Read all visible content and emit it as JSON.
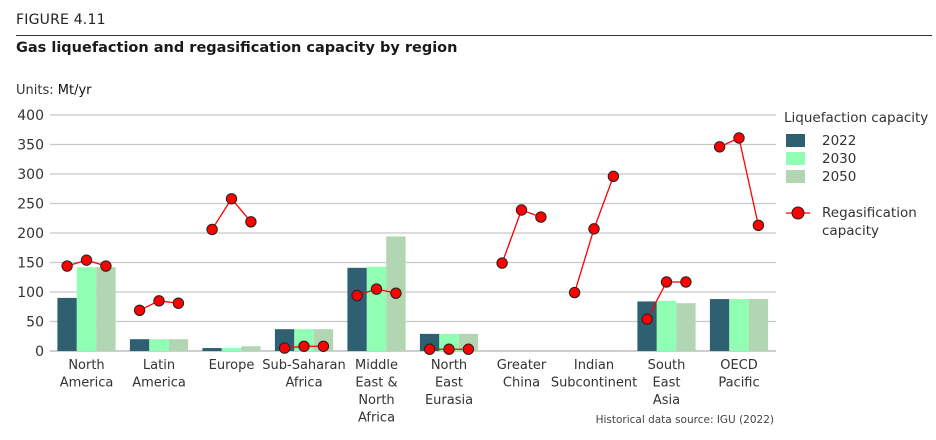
{
  "figure_label": "FIGURE 4.11",
  "units_prefix": "Units:",
  "units_value": "Mt/yr",
  "source_note": "Historical data source: IGU (2022)",
  "colors": {
    "y2022": "#2e6072",
    "y2030": "#90ffb3",
    "y2050": "#b1d6b1",
    "regas": "#ff0000",
    "grid": "#c8c8c8"
  },
  "legend": {
    "title": "Liquefaction capacity",
    "items": [
      {
        "label": "2022",
        "color_key": "y2022"
      },
      {
        "label": "2030",
        "color_key": "y2030"
      },
      {
        "label": "2050",
        "color_key": "y2050"
      }
    ],
    "regas_label_line1": "Regasification",
    "regas_label_line2": "capacity"
  },
  "chart_data": {
    "type": "bar",
    "title": "Gas liquefaction and regasification capacity by region",
    "xlabel": "",
    "ylabel": "Mt/yr",
    "ylim": [
      0,
      400
    ],
    "yticks": [
      0,
      50,
      100,
      150,
      200,
      250,
      300,
      350,
      400
    ],
    "grid": true,
    "legend_position": "right",
    "categories": [
      [
        "North",
        "America"
      ],
      [
        "Latin",
        "America"
      ],
      [
        "Europe"
      ],
      [
        "Sub-Saharan",
        "Africa"
      ],
      [
        "Middle",
        "East &",
        "North",
        "Africa"
      ],
      [
        "North",
        "East",
        "Eurasia"
      ],
      [
        "Greater",
        "China"
      ],
      [
        "Indian",
        "Subcontinent"
      ],
      [
        "South",
        "East",
        "Asia"
      ],
      [
        "OECD",
        "Pacific"
      ]
    ],
    "series": [
      {
        "name": "2022",
        "kind": "bar",
        "color_key": "y2022",
        "values": [
          90,
          20,
          5,
          37,
          141,
          29,
          0,
          0,
          84,
          88
        ]
      },
      {
        "name": "2030",
        "kind": "bar",
        "color_key": "y2030",
        "values": [
          142,
          20,
          5,
          37,
          143,
          29,
          0,
          0,
          85,
          88
        ]
      },
      {
        "name": "2050",
        "kind": "bar",
        "color_key": "y2050",
        "values": [
          142,
          20,
          8,
          37,
          194,
          29,
          0,
          0,
          81,
          88
        ]
      },
      {
        "name": "Regasification capacity",
        "kind": "line-points",
        "color_key": "regas",
        "values": [
          [
            144,
            154,
            144
          ],
          [
            69,
            85,
            81
          ],
          [
            206,
            258,
            219
          ],
          [
            5,
            8,
            8
          ],
          [
            94,
            105,
            98
          ],
          [
            3,
            3,
            3
          ],
          [
            149,
            239,
            227
          ],
          [
            99,
            207,
            296
          ],
          [
            54,
            117,
            117
          ],
          [
            346,
            361,
            213
          ]
        ]
      }
    ]
  }
}
